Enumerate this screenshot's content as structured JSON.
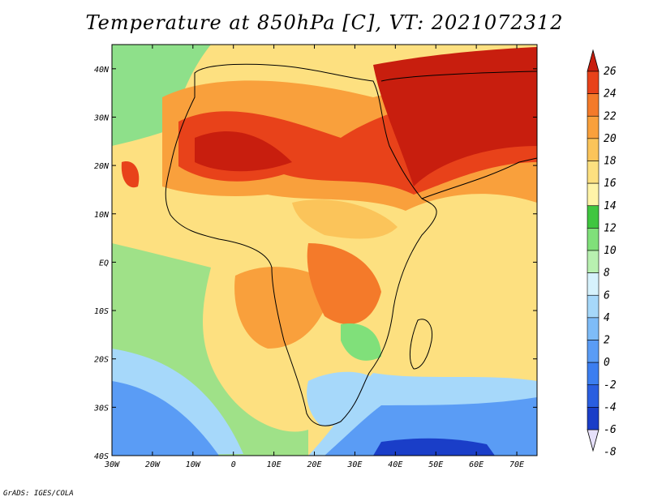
{
  "title": "Temperature at 850hPa [C], VT: 2021072312",
  "credit": "GrADS: IGES/COLA",
  "map": {
    "projection": "lat-lon",
    "lon_range": [
      -30,
      75
    ],
    "lat_range": [
      -40,
      45
    ],
    "lat_ticks": [
      {
        "value": 40,
        "label": "40N"
      },
      {
        "value": 30,
        "label": "30N"
      },
      {
        "value": 20,
        "label": "20N"
      },
      {
        "value": 10,
        "label": "10N"
      },
      {
        "value": 0,
        "label": "EQ"
      },
      {
        "value": -10,
        "label": "10S"
      },
      {
        "value": -20,
        "label": "20S"
      },
      {
        "value": -30,
        "label": "30S"
      },
      {
        "value": -40,
        "label": "40S"
      }
    ],
    "lon_ticks": [
      {
        "value": -30,
        "label": "30W"
      },
      {
        "value": -20,
        "label": "20W"
      },
      {
        "value": -10,
        "label": "10W"
      },
      {
        "value": 0,
        "label": "0"
      },
      {
        "value": 10,
        "label": "10E"
      },
      {
        "value": 20,
        "label": "20E"
      },
      {
        "value": 30,
        "label": "30E"
      },
      {
        "value": 40,
        "label": "40E"
      },
      {
        "value": 50,
        "label": "50E"
      },
      {
        "value": 60,
        "label": "60E"
      },
      {
        "value": 70,
        "label": "70E"
      }
    ]
  },
  "colorbar": {
    "colors": [
      "#0a0a6e",
      "#1a3ec8",
      "#2a5ee0",
      "#3c7ef0",
      "#5a9cf5",
      "#7ebcf8",
      "#a6d8fa",
      "#d6f2fc",
      "#b8f0b0",
      "#80e07a",
      "#40c640",
      "#fff4a8",
      "#fde080",
      "#fbc45a",
      "#f9a03c",
      "#f47a2a",
      "#e8421a",
      "#c81e0e"
    ],
    "labels": [
      "-8",
      "-6",
      "-4",
      "-2",
      "0",
      "2",
      "4",
      "6",
      "8",
      "10",
      "12",
      "14",
      "16",
      "18",
      "20",
      "22",
      "24",
      "26"
    ]
  },
  "fill_colors": {
    "ocean_north": "#8ee08a",
    "ocean_south_cool": "#a6d8fa",
    "ocean_south_cold": "#5a9cf5",
    "deep_cold": "#1a3ec8",
    "tropics": "#fde080",
    "warm": "#f9a03c",
    "hot": "#e8421a",
    "hottest": "#c81e0e",
    "green_band": "#40c640"
  }
}
